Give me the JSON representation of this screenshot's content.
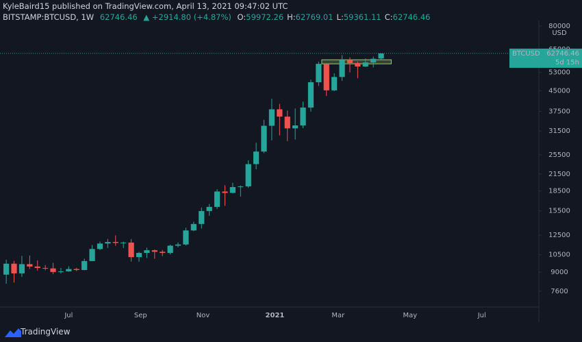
{
  "header": {
    "publisher": "KyleBaird15 published on TradingView.com, April 13, 2021 09:47:02 UTC",
    "symbol": "BITSTAMP:BTCUSD, 1W",
    "price": "62746.46",
    "change": "▲ +2914.80 (+4.87%)",
    "ohlc": [
      {
        "label": "O:",
        "value": "59972.26"
      },
      {
        "label": "H:",
        "value": "62769.01"
      },
      {
        "label": "L:",
        "value": "59361.11"
      },
      {
        "label": "C:",
        "value": "62746.46"
      }
    ]
  },
  "footer": {
    "brand": "TradingView"
  },
  "chart_data": {
    "type": "candlestick",
    "currency": "USD",
    "log_scale": true,
    "grid": false,
    "up_color": "#26a69a",
    "down_color": "#ef5350",
    "open": [
      8800,
      9700,
      8900,
      9660,
      9460,
      9340,
      9300,
      9010,
      9060,
      9250,
      9170,
      9930,
      11050,
      11600,
      11760,
      11660,
      11700,
      10280,
      10670,
      10930,
      10780,
      10670,
      11380,
      11500,
      13030,
      13800,
      15480,
      16060,
      18410,
      18180,
      19150,
      19270,
      23480,
      26250,
      33000,
      38200,
      35800,
      32250,
      33100,
      38800,
      48580,
      57200,
      45200,
      50900,
      59000,
      57600,
      55850,
      57900,
      59972.26
    ],
    "high": [
      10050,
      9950,
      10400,
      10430,
      9990,
      9580,
      9770,
      9340,
      9480,
      9350,
      10150,
      11450,
      11800,
      12090,
      12470,
      11800,
      12070,
      10760,
      11180,
      11000,
      10950,
      11480,
      11720,
      13350,
      14080,
      15970,
      16480,
      18800,
      19480,
      19900,
      19420,
      24300,
      28400,
      34800,
      41950,
      40100,
      37800,
      38500,
      40900,
      49700,
      58350,
      57550,
      52600,
      61800,
      60600,
      58400,
      60000,
      61000,
      62769.01
    ],
    "low": [
      8120,
      8200,
      8630,
      9260,
      9120,
      9150,
      8830,
      8900,
      9030,
      9080,
      9150,
      9930,
      10950,
      11150,
      11370,
      11150,
      9880,
      9880,
      10200,
      10130,
      10370,
      10530,
      11220,
      11400,
      12950,
      13250,
      14840,
      15780,
      16200,
      18100,
      17600,
      19000,
      22420,
      25880,
      29000,
      30300,
      28800,
      29200,
      32300,
      37400,
      47000,
      43000,
      44900,
      49200,
      53000,
      50300,
      55600,
      55400,
      59361.11
    ],
    "close": [
      9700,
      8900,
      9660,
      9460,
      9340,
      9300,
      9010,
      9060,
      9250,
      9170,
      9930,
      11050,
      11600,
      11760,
      11660,
      11700,
      10280,
      10670,
      10930,
      10780,
      10670,
      11380,
      11500,
      13030,
      13800,
      15480,
      16060,
      18410,
      18180,
      19150,
      19270,
      23480,
      26250,
      33000,
      38200,
      35800,
      32250,
      33100,
      38800,
      48580,
      57200,
      45200,
      50900,
      59000,
      57600,
      55850,
      57900,
      59831.66,
      62746.46
    ],
    "x": [
      0,
      1,
      2,
      3,
      4,
      5,
      6,
      7,
      8,
      9,
      10,
      11,
      12,
      13,
      14,
      15,
      16,
      17,
      18,
      19,
      20,
      21,
      22,
      23,
      24,
      25,
      26,
      27,
      28,
      29,
      30,
      31,
      32,
      33,
      34,
      35,
      36,
      37,
      38,
      39,
      40,
      41,
      42,
      43,
      44,
      45,
      46,
      47,
      48
    ],
    "xlim": [
      -0.8,
      68.2
    ],
    "xticks": [
      {
        "value": 8.0,
        "label": "Jul"
      },
      {
        "value": 17.2,
        "label": "Sep"
      },
      {
        "value": 25.2,
        "label": "Nov"
      },
      {
        "value": 34.4,
        "label": "2021"
      },
      {
        "value": 42.5,
        "label": "Mar"
      },
      {
        "value": 51.7,
        "label": "May"
      },
      {
        "value": 60.9,
        "label": "Jul"
      }
    ],
    "ylim": [
      6600,
      84000
    ],
    "yticks": [
      80000,
      65000,
      53000,
      45000,
      37500,
      31500,
      25500,
      21500,
      18500,
      15500,
      12500,
      10500,
      9000,
      7600
    ],
    "box": {
      "x0": 40.4,
      "x1": 49.3,
      "y0": 57200,
      "y1": 59300,
      "color": "#9ccc65"
    },
    "last_label": {
      "symbol": "BTCUSD",
      "countdown": "5d 15h"
    }
  }
}
